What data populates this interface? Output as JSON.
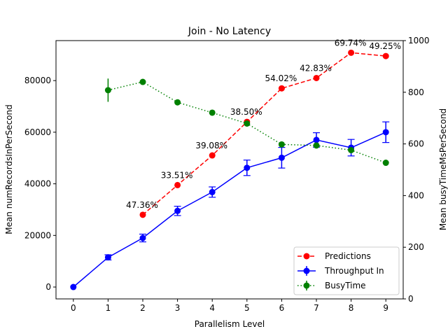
{
  "chart_data": {
    "type": "line",
    "title": "Join - No Latency",
    "xlabel": "Parallelism Level",
    "ylabel": "Mean numRecordsInPerSecond",
    "y2label": "Mean busyTimeMsPerSecond",
    "xlim": [
      -0.5,
      9.5
    ],
    "ylim": [
      -4600,
      95500
    ],
    "y2lim": [
      0,
      1000
    ],
    "x_ticks": [
      "0",
      "1",
      "2",
      "3",
      "4",
      "5",
      "6",
      "7",
      "8",
      "9"
    ],
    "y_ticks": [
      "0",
      "20000",
      "40000",
      "60000",
      "80000"
    ],
    "y2_ticks": [
      "0",
      "200",
      "400",
      "600",
      "800",
      "1000"
    ],
    "grid": false,
    "legend_position": "lower-right",
    "series": [
      {
        "name": "Predictions",
        "axis": "left",
        "color": "#ff0000",
        "style": "dashed",
        "x": [
          2,
          3,
          4,
          5,
          6,
          7,
          8,
          9
        ],
        "values": [
          28000,
          39500,
          51000,
          64000,
          77000,
          81000,
          90800,
          89500
        ],
        "labels": [
          "47.36%",
          "33.51%",
          "39.08%",
          "38.50%",
          "54.02%",
          "42.83%",
          "69.74%",
          "49.25%"
        ]
      },
      {
        "name": "Throughput In",
        "axis": "left",
        "color": "#0000ff",
        "style": "solid",
        "x": [
          0,
          1,
          2,
          3,
          4,
          5,
          6,
          7,
          8,
          9
        ],
        "values": [
          0,
          11500,
          19000,
          29500,
          36800,
          46200,
          50100,
          57000,
          54000,
          60000
        ],
        "errors": [
          0,
          1000,
          1500,
          1800,
          2000,
          3000,
          4000,
          2800,
          3200,
          4000
        ]
      },
      {
        "name": "BusyTime",
        "axis": "right",
        "color": "#008000",
        "style": "dotted",
        "x": [
          1,
          2,
          3,
          4,
          5,
          6,
          7,
          8,
          9
        ],
        "values": [
          808,
          840,
          761,
          721,
          679,
          598,
          594,
          576,
          527
        ],
        "errors": [
          45,
          0,
          0,
          0,
          0,
          0,
          0,
          0,
          0
        ]
      }
    ]
  }
}
